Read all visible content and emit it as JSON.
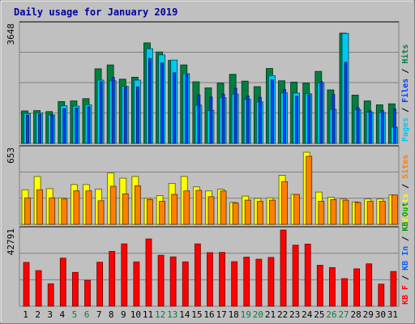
{
  "title": "Daily usage for January 2019",
  "colors": {
    "background": "#c0c0c0",
    "title": "#0000a0",
    "hits": "#008040",
    "files": "#0040ff",
    "pages": "#00c8f0",
    "visits": "#ffff00",
    "sites": "#ff8000",
    "kb_out": "#00a000",
    "kb_in": "#0060ff",
    "kb_f": "#ff0000",
    "weekend": "#008040",
    "weekday": "#000000"
  },
  "chart_data": [
    {
      "type": "bar",
      "name": "top-panel",
      "max_label": "3648",
      "ylim": [
        0,
        3648
      ],
      "right_labels": [
        "Pages",
        "Files",
        "Hits"
      ],
      "categories": [
        "1",
        "2",
        "3",
        "4",
        "5",
        "6",
        "7",
        "8",
        "9",
        "10",
        "11",
        "12",
        "13",
        "14",
        "15",
        "16",
        "17",
        "18",
        "19",
        "20",
        "21",
        "22",
        "23",
        "24",
        "25",
        "26",
        "27",
        "28",
        "29",
        "30",
        "31"
      ],
      "weekend": [
        "5",
        "6",
        "12",
        "13",
        "19",
        "20",
        "26",
        "27"
      ],
      "series": [
        {
          "name": "Hits",
          "values": [
            1000,
            1010,
            980,
            1290,
            1310,
            1380,
            2300,
            2420,
            1980,
            2040,
            3100,
            2820,
            2560,
            2420,
            1900,
            1710,
            1860,
            2130,
            1920,
            1750,
            2310,
            1930,
            1890,
            1860,
            2220,
            1650,
            3400,
            1490,
            1310,
            1190,
            1220
          ]
        },
        {
          "name": "Files",
          "values": [
            870,
            900,
            870,
            1070,
            1090,
            1130,
            1900,
            2040,
            1730,
            1740,
            2620,
            2480,
            2180,
            2120,
            1500,
            1430,
            1520,
            1700,
            1460,
            1420,
            1960,
            1660,
            1450,
            1500,
            1910,
            1510,
            2500,
            1100,
            1000,
            1010,
            1060
          ]
        },
        {
          "name": "Pages",
          "values": [
            920,
            940,
            880,
            1160,
            1150,
            1190,
            1950,
            1930,
            1760,
            1950,
            2920,
            2730,
            2570,
            2150,
            1180,
            1020,
            1410,
            1520,
            1360,
            1280,
            2090,
            1560,
            1550,
            1530,
            1870,
            1050,
            3390,
            1040,
            960,
            950,
            500
          ]
        }
      ]
    },
    {
      "type": "bar",
      "name": "middle-panel",
      "max_label": "653",
      "ylim": [
        0,
        653
      ],
      "right_labels": [
        "Visits",
        "Sites"
      ],
      "categories": [
        "1",
        "2",
        "3",
        "4",
        "5",
        "6",
        "7",
        "8",
        "9",
        "10",
        "11",
        "12",
        "13",
        "14",
        "15",
        "16",
        "17",
        "18",
        "19",
        "20",
        "21",
        "22",
        "23",
        "24",
        "25",
        "26",
        "27",
        "28",
        "29",
        "30",
        "31"
      ],
      "series": [
        {
          "name": "Visits",
          "values": [
            300,
            415,
            310,
            230,
            345,
            345,
            305,
            445,
            400,
            415,
            225,
            250,
            355,
            415,
            325,
            290,
            305,
            190,
            245,
            225,
            230,
            425,
            260,
            625,
            280,
            235,
            220,
            195,
            220,
            220,
            255
          ]
        },
        {
          "name": "Sites",
          "values": [
            230,
            300,
            230,
            220,
            290,
            290,
            205,
            330,
            265,
            335,
            215,
            200,
            260,
            290,
            295,
            240,
            290,
            185,
            210,
            200,
            210,
            370,
            260,
            590,
            200,
            215,
            210,
            190,
            200,
            200,
            255
          ]
        }
      ]
    },
    {
      "type": "bar",
      "name": "bottom-panel",
      "max_label": "42791",
      "ylim": [
        0,
        42791
      ],
      "right_labels": [
        "KB F",
        "KB In",
        "KB Out"
      ],
      "categories": [
        "1",
        "2",
        "3",
        "4",
        "5",
        "6",
        "7",
        "8",
        "9",
        "10",
        "11",
        "12",
        "13",
        "14",
        "15",
        "16",
        "17",
        "18",
        "19",
        "20",
        "21",
        "22",
        "23",
        "24",
        "25",
        "26",
        "27",
        "28",
        "29",
        "30",
        "31"
      ],
      "series": [
        {
          "name": "KB F",
          "values": [
            24600,
            20000,
            12600,
            27000,
            19000,
            14500,
            24700,
            30800,
            35000,
            24900,
            37800,
            28600,
            27700,
            24900,
            35000,
            30100,
            30200,
            25000,
            27600,
            26400,
            27400,
            42791,
            34300,
            34900,
            23000,
            21700,
            15500,
            21000,
            23800,
            12400,
            19500
          ]
        }
      ]
    }
  ]
}
